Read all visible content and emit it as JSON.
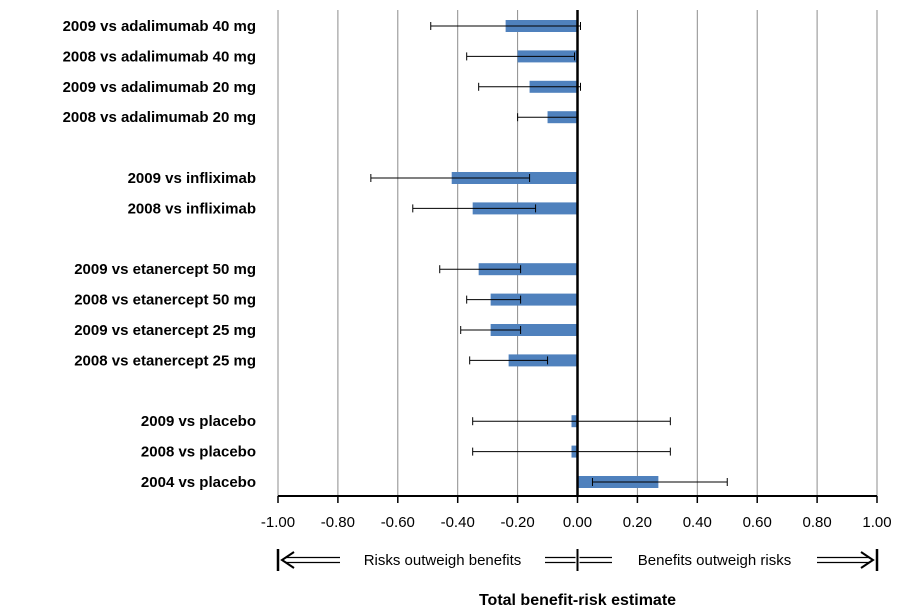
{
  "chart_data": {
    "type": "bar",
    "orientation": "horizontal",
    "xlabel": "Total benefit-risk estimate",
    "xlim": [
      -1.0,
      1.0
    ],
    "x_ticks": [
      "-1.00",
      "-0.80",
      "-0.60",
      "-0.40",
      "-0.20",
      "0.00",
      "0.20",
      "0.40",
      "0.60",
      "0.80",
      "1.00"
    ],
    "grid": true,
    "bar_color": "#4F81BD",
    "annotations": {
      "left": "Risks outweigh benefits",
      "right": "Benefits outweigh risks"
    },
    "rows": [
      {
        "label": "2009 vs adalimumab 40 mg",
        "value": -0.24,
        "ci": [
          -0.49,
          0.01
        ]
      },
      {
        "label": "2008 vs adalimumab 40 mg",
        "value": -0.2,
        "ci": [
          -0.37,
          -0.01
        ]
      },
      {
        "label": "2009 vs adalimumab 20 mg",
        "value": -0.16,
        "ci": [
          -0.33,
          0.01
        ]
      },
      {
        "label": "2008 vs adalimumab 20 mg",
        "value": -0.1,
        "ci": [
          -0.2,
          0.0
        ]
      },
      {
        "label": "",
        "gap": true
      },
      {
        "label": "2009 vs infliximab",
        "value": -0.42,
        "ci": [
          -0.69,
          -0.16
        ]
      },
      {
        "label": "2008 vs infliximab",
        "value": -0.35,
        "ci": [
          -0.55,
          -0.14
        ]
      },
      {
        "label": "",
        "gap": true
      },
      {
        "label": "2009 vs etanercept 50 mg",
        "value": -0.33,
        "ci": [
          -0.46,
          -0.19
        ]
      },
      {
        "label": "2008 vs etanercept 50 mg",
        "value": -0.29,
        "ci": [
          -0.37,
          -0.19
        ]
      },
      {
        "label": "2009 vs etanercept 25 mg",
        "value": -0.29,
        "ci": [
          -0.39,
          -0.19
        ]
      },
      {
        "label": "2008 vs etanercept 25 mg",
        "value": -0.23,
        "ci": [
          -0.36,
          -0.1
        ]
      },
      {
        "label": "",
        "gap": true
      },
      {
        "label": "2009 vs placebo",
        "value": -0.02,
        "ci": [
          -0.35,
          0.31
        ]
      },
      {
        "label": "2008 vs placebo",
        "value": -0.02,
        "ci": [
          -0.35,
          0.31
        ]
      },
      {
        "label": "2004 vs placebo",
        "value": 0.27,
        "ci": [
          0.05,
          0.5
        ]
      }
    ]
  }
}
